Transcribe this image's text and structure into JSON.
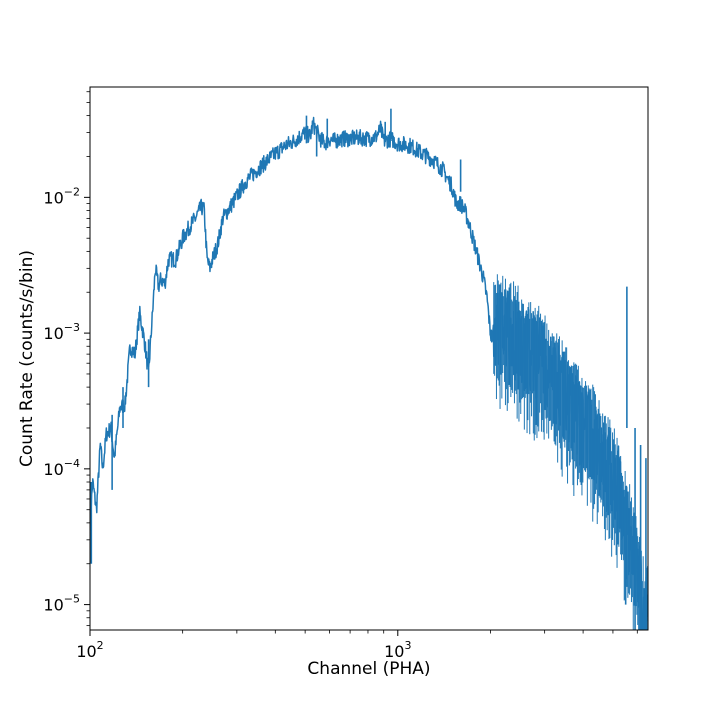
{
  "chart_data": {
    "type": "line",
    "title": "",
    "xlabel": "Channel (PHA)",
    "ylabel": "Count Rate (counts/s/bin)",
    "xscale": "log",
    "yscale": "log",
    "xlim": [
      100,
      6500
    ],
    "ylim": [
      6.5e-06,
      0.065
    ],
    "grid": false,
    "legend": "none",
    "line_color": "#1f77b4",
    "x_ticks": [
      {
        "value": 100,
        "mantissa": "10",
        "exp": "2"
      },
      {
        "value": 1000,
        "mantissa": "10",
        "exp": "3"
      }
    ],
    "y_ticks": [
      {
        "value": 1e-05,
        "mantissa": "10",
        "exp": "−5"
      },
      {
        "value": 0.0001,
        "mantissa": "10",
        "exp": "−4"
      },
      {
        "value": 0.001,
        "mantissa": "10",
        "exp": "−3"
      },
      {
        "value": 0.01,
        "mantissa": "10",
        "exp": "−2"
      }
    ],
    "series": [
      {
        "x": [
          100,
          102,
          105,
          108,
          110,
          113,
          117,
          120,
          125,
          130,
          135,
          140,
          145,
          150,
          155,
          158,
          160,
          163,
          167,
          170,
          175,
          180,
          190,
          200,
          210,
          220,
          230,
          235,
          240,
          245,
          250,
          260,
          270,
          290,
          320,
          340,
          350,
          380,
          400,
          430,
          460,
          480,
          500,
          520,
          530,
          560,
          580,
          600,
          620,
          660,
          700,
          750,
          800,
          850,
          880,
          900,
          950,
          1000,
          1100,
          1200,
          1300,
          1400,
          1500,
          1550,
          1600,
          1650,
          1700,
          1800,
          1900,
          1950,
          2000,
          2030,
          2060,
          2100,
          2200,
          2400,
          2600,
          2800,
          3000,
          3200,
          3500,
          3800,
          4000,
          4300,
          4600,
          4900,
          5200,
          5400,
          5500,
          5600,
          5800,
          6000,
          6200,
          6500
        ],
        "y": [
          4e-05,
          8e-05,
          5e-05,
          0.00015,
          0.0001,
          0.00018,
          0.0002,
          0.00012,
          0.00028,
          0.0003,
          0.0008,
          0.0007,
          0.0014,
          0.0009,
          0.0005,
          0.001,
          0.0015,
          0.003,
          0.0022,
          0.0025,
          0.0023,
          0.0035,
          0.0035,
          0.005,
          0.006,
          0.007,
          0.0085,
          0.008,
          0.0035,
          0.003,
          0.0035,
          0.0045,
          0.007,
          0.009,
          0.013,
          0.015,
          0.016,
          0.019,
          0.021,
          0.024,
          0.026,
          0.028,
          0.03,
          0.028,
          0.035,
          0.027,
          0.025,
          0.027,
          0.026,
          0.027,
          0.027,
          0.0275,
          0.027,
          0.028,
          0.032,
          0.026,
          0.027,
          0.025,
          0.024,
          0.021,
          0.019,
          0.016,
          0.012,
          0.009,
          0.009,
          0.008,
          0.0065,
          0.004,
          0.0025,
          0.0018,
          0.001,
          0.0009,
          0.0013,
          0.0012,
          0.0012,
          0.001,
          0.0008,
          0.0007,
          0.0006,
          0.00045,
          0.00035,
          0.00025,
          0.00022,
          0.00018,
          0.00012,
          0.0001,
          8e-05,
          5e-05,
          4e-05,
          3.5e-05,
          3e-05,
          2e-05,
          1e-05,
          8e-06
        ]
      }
    ],
    "spikes": [
      {
        "x": 101,
        "y": 2e-05,
        "lo": 2e-05,
        "hi": 8e-05
      },
      {
        "x": 118,
        "y": 0.0001,
        "lo": 7e-05,
        "hi": 0.00025
      },
      {
        "x": 128,
        "y": 0.0004,
        "lo": 0.0002,
        "hi": 0.0004
      },
      {
        "x": 155,
        "y": 0.0004,
        "lo": 0.0004,
        "hi": 0.0009
      },
      {
        "x": 505,
        "y": 0.04,
        "lo": 0.025,
        "hi": 0.04
      },
      {
        "x": 545,
        "y": 0.02,
        "lo": 0.02,
        "hi": 0.03
      },
      {
        "x": 590,
        "y": 0.038,
        "lo": 0.025,
        "hi": 0.038
      },
      {
        "x": 910,
        "y": 0.036,
        "lo": 0.026,
        "hi": 0.036
      },
      {
        "x": 950,
        "y": 0.045,
        "lo": 0.026,
        "hi": 0.045
      },
      {
        "x": 1600,
        "y": 0.019,
        "lo": 0.011,
        "hi": 0.019
      },
      {
        "x": 5500,
        "y": 1e-05,
        "lo": 1e-05,
        "hi": 4e-05
      },
      {
        "x": 5550,
        "y": 0.0022,
        "lo": 0.0002,
        "hi": 0.0022
      },
      {
        "x": 5900,
        "y": 0.0002,
        "lo": 6.5e-06,
        "hi": 0.0002
      },
      {
        "x": 6150,
        "y": 0.00015,
        "lo": 6.5e-06,
        "hi": 0.00015
      },
      {
        "x": 6400,
        "y": 0.00012,
        "lo": 6.5e-06,
        "hi": 0.00012
      }
    ],
    "noise_bands": [
      {
        "from": 2050,
        "to": 6500,
        "lo_factor": 0.45,
        "hi_factor": 2.0
      }
    ]
  }
}
